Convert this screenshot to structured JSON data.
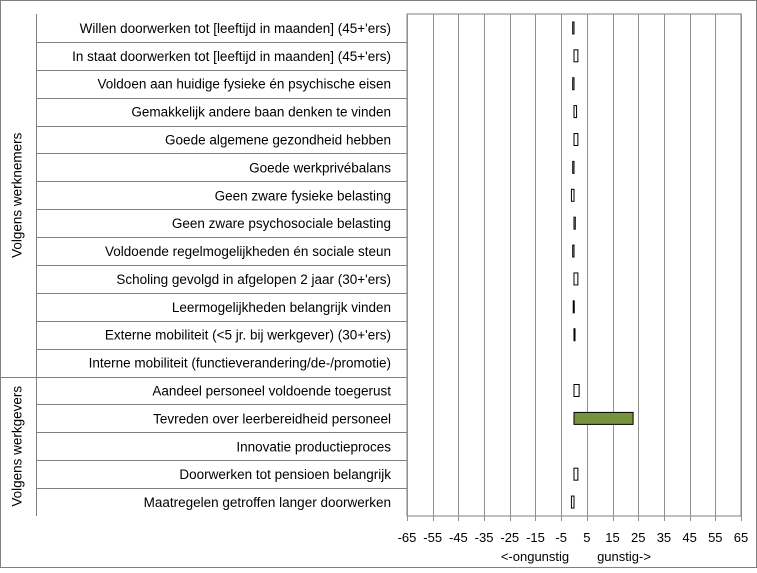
{
  "chart_data": {
    "type": "bar",
    "orientation": "horizontal",
    "categories": [
      "Willen doorwerken tot [leeftijd in maanden] (45+'ers)",
      "In staat doorwerken tot [leeftijd in maanden] (45+'ers)",
      "Voldoen aan huidige fysieke én psychische eisen",
      "Gemakkelijk andere baan denken te vinden",
      "Goede algemene gezondheid hebben",
      "Goede werkprivébalans",
      "Geen zware fysieke belasting",
      "Geen zware psychosociale belasting",
      "Voldoende regelmogelijkheden én sociale steun",
      "Scholing gevolgd in afgelopen 2 jaar (30+'ers)",
      "Leermogelijkheden belangrijk vinden",
      "Externe mobiliteit (<5 jr. bij werkgever) (30+'ers)",
      "Interne mobiliteit (functieverandering/de-/promotie)",
      "Aandeel personeel voldoende toegerust",
      "Tevreden over leerbereidheid personeel",
      "Innovatie productieproces",
      "Doorwerken tot pensioen belangrijk",
      "Maatregelen getroffen langer doorwerken"
    ],
    "values": [
      -0.5,
      1.5,
      -0.5,
      1.0,
      1.5,
      -0.5,
      -1.0,
      0.5,
      -0.5,
      1.5,
      -0.3,
      0.3,
      0,
      2.0,
      23.0,
      0,
      1.5,
      -1.0
    ],
    "bar_colors": [
      "#ffffff",
      "#ffffff",
      "#ffffff",
      "#ffffff",
      "#ffffff",
      "#ffffff",
      "#ffffff",
      "#ffffff",
      "#ffffff",
      "#ffffff",
      "#ffffff",
      "#ffffff",
      "#ffffff",
      "#ffffff",
      "#77933c",
      "#ffffff",
      "#ffffff",
      "#ffffff"
    ],
    "groups": [
      {
        "label": "Volgens werknemers",
        "first": 0,
        "last": 12
      },
      {
        "label": "Volgens werkgevers",
        "first": 13,
        "last": 17
      }
    ],
    "xlim": [
      -65,
      65
    ],
    "xticks": [
      -65,
      -55,
      -45,
      -35,
      -25,
      -15,
      -5,
      5,
      15,
      25,
      35,
      45,
      55,
      65
    ],
    "xlabel_left": "<-ongunstig",
    "xlabel_right": "gunstig->",
    "grid": true
  }
}
